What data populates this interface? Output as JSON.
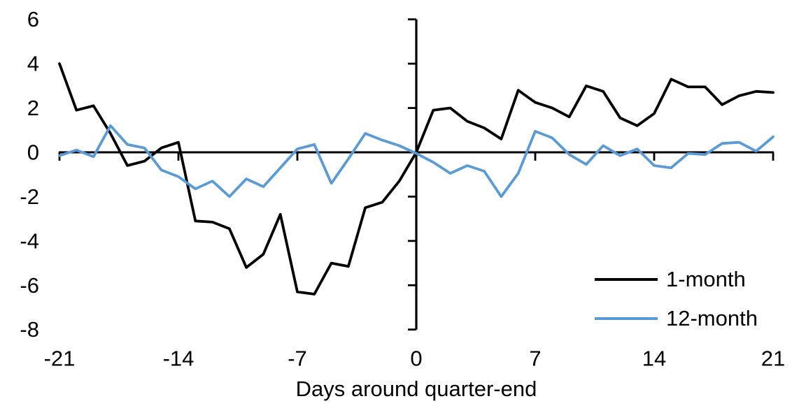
{
  "chart_data": {
    "type": "line",
    "title": "",
    "xlabel": "Days around quarter-end",
    "ylabel": "",
    "xlim": [
      -21,
      21
    ],
    "ylim": [
      -8,
      6
    ],
    "x_ticks": [
      -21,
      -14,
      -7,
      0,
      7,
      14,
      21
    ],
    "y_ticks": [
      6,
      4,
      2,
      0,
      -2,
      -4,
      -6,
      -8
    ],
    "grid": false,
    "legend_position": "lower-right",
    "x": [
      -21,
      -20,
      -19,
      -18,
      -17,
      -16,
      -15,
      -14,
      -13,
      -12,
      -11,
      -10,
      -9,
      -8,
      -7,
      -6,
      -5,
      -4,
      -3,
      -2,
      -1,
      0,
      1,
      2,
      3,
      4,
      5,
      6,
      7,
      8,
      9,
      10,
      11,
      12,
      13,
      14,
      15,
      16,
      17,
      18,
      19,
      20,
      21
    ],
    "series": [
      {
        "name": "1-month",
        "color": "#000000",
        "values": [
          4.0,
          1.9,
          2.1,
          0.85,
          -0.6,
          -0.4,
          0.2,
          0.45,
          -3.1,
          -3.15,
          -3.45,
          -5.2,
          -4.6,
          -2.8,
          -6.3,
          -6.4,
          -5.0,
          -5.15,
          -2.5,
          -2.25,
          -1.3,
          0.0,
          1.9,
          2.0,
          1.4,
          1.1,
          0.6,
          2.8,
          2.25,
          2.0,
          1.6,
          3.0,
          2.75,
          1.55,
          1.2,
          1.75,
          3.3,
          2.95,
          2.95,
          2.15,
          2.55,
          2.75,
          2.7
        ]
      },
      {
        "name": "12-month",
        "color": "#5B9BD5",
        "values": [
          -0.15,
          0.1,
          -0.2,
          1.2,
          0.35,
          0.2,
          -0.8,
          -1.1,
          -1.65,
          -1.3,
          -2.0,
          -1.2,
          -1.55,
          -0.7,
          0.15,
          0.35,
          -1.4,
          -0.3,
          0.85,
          0.55,
          0.3,
          -0.05,
          -0.45,
          -0.95,
          -0.6,
          -0.85,
          -2.0,
          -0.95,
          0.95,
          0.65,
          -0.1,
          -0.55,
          0.3,
          -0.15,
          0.15,
          -0.6,
          -0.7,
          -0.05,
          -0.1,
          0.4,
          0.45,
          0.05,
          0.7
        ]
      }
    ]
  }
}
